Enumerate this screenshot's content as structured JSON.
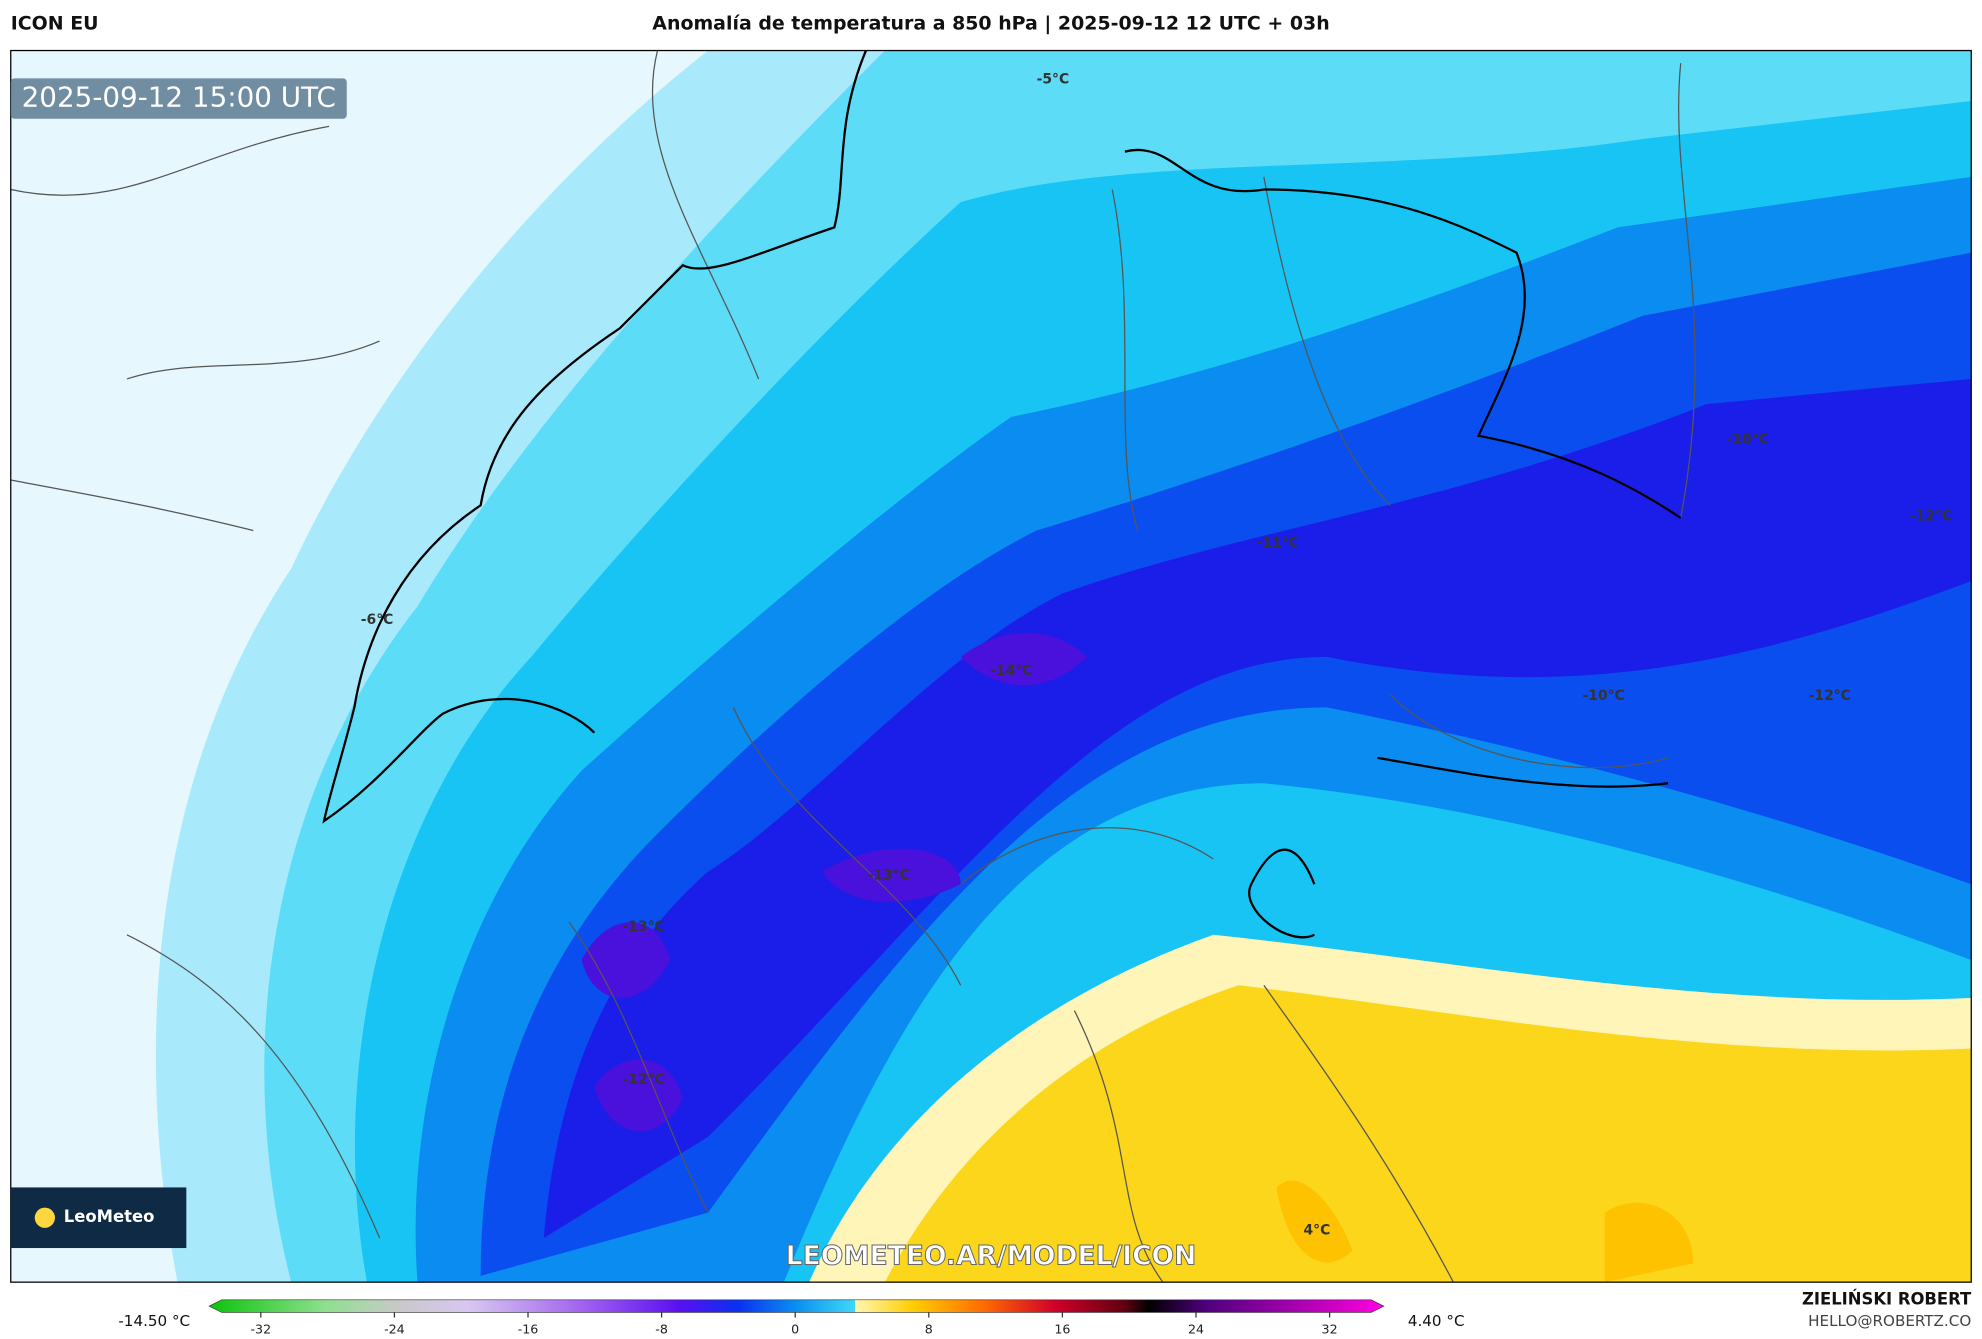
{
  "header": {
    "model": "ICON EU",
    "title": "Anomalía de temperatura a 850 hPa | 2025-09-12 12 UTC + 03h"
  },
  "map": {
    "timestamp": "2025-09-12 15:00 UTC",
    "watermark": "LEOMETEO.AR/MODEL/ICON",
    "logo": "LeoMeteo",
    "contour_labels": [
      "-5°C",
      "-10°C",
      "-12°C",
      "-11°C",
      "-6°C",
      "-14°C",
      "-10°C",
      "-12°C",
      "-13°C",
      "-13°C",
      "-12°C",
      "4°C"
    ]
  },
  "colorbar": {
    "min_label": "-14.50 °C",
    "max_label": "4.40 °C",
    "ticks": [
      -32,
      -24,
      -16,
      -8,
      0,
      8,
      16,
      24,
      32
    ]
  },
  "footer": {
    "author": "ZIELIŃSKI ROBERT",
    "email": "HELLO@ROBERTZ.CO"
  }
}
